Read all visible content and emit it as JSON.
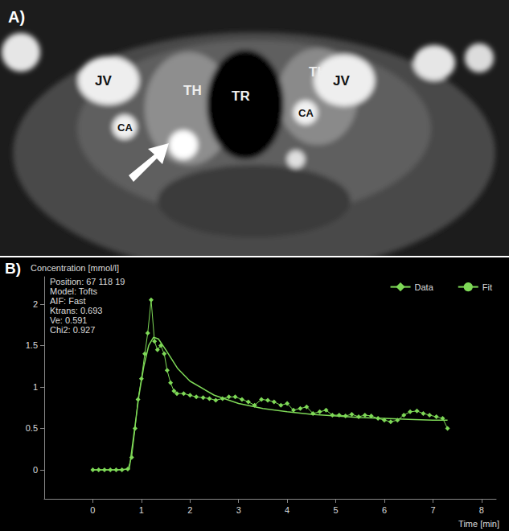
{
  "panel_a": {
    "letter": "A)",
    "labels": [
      "JV",
      "TH",
      "TR",
      "TH",
      "JV",
      "CA",
      "CA"
    ]
  },
  "chart_data": {
    "type": "line",
    "letter": "B)",
    "y_label": "Concentration [mmol/l]",
    "x_label": "Time [min]",
    "annotations": [
      "Position: 67 118 19",
      "Model: Tofts",
      "AIF: Fast",
      "Ktrans: 0.693",
      "Ve: 0.591",
      "Chi2: 0.927"
    ],
    "xlim": [
      -1,
      8.3
    ],
    "xticks": [
      0,
      1,
      2,
      3,
      4,
      5,
      6,
      7,
      8
    ],
    "ylim": [
      -0.35,
      2.33
    ],
    "yticks": [
      0,
      0.5,
      1,
      1.5,
      2
    ],
    "grid": false,
    "legend": "upper right",
    "series": [
      {
        "name": "Data",
        "color": "#7ed957",
        "marker": "diamond",
        "line_style": "solid",
        "x": [
          0,
          0.12,
          0.24,
          0.36,
          0.48,
          0.6,
          0.72,
          0.8,
          0.87,
          0.93,
          1.0,
          1.07,
          1.13,
          1.2,
          1.27,
          1.33,
          1.4,
          1.47,
          1.53,
          1.6,
          1.67,
          1.73,
          1.87,
          2.0,
          2.13,
          2.27,
          2.4,
          2.53,
          2.67,
          2.8,
          2.93,
          3.07,
          3.2,
          3.33,
          3.47,
          3.6,
          3.73,
          3.87,
          4.0,
          4.13,
          4.27,
          4.4,
          4.53,
          4.67,
          4.8,
          4.93,
          5.07,
          5.2,
          5.33,
          5.47,
          5.6,
          5.73,
          5.87,
          6.0,
          6.13,
          6.27,
          6.4,
          6.53,
          6.67,
          6.8,
          6.93,
          7.07,
          7.2,
          7.3
        ],
        "values": [
          0,
          0,
          0,
          0,
          0,
          0,
          0.01,
          0.15,
          0.5,
          0.85,
          1.1,
          1.4,
          1.65,
          2.05,
          1.55,
          1.45,
          1.5,
          1.4,
          1.2,
          1.05,
          0.95,
          0.92,
          0.92,
          0.9,
          0.88,
          0.87,
          0.86,
          0.84,
          0.86,
          0.88,
          0.88,
          0.85,
          0.82,
          0.78,
          0.85,
          0.84,
          0.82,
          0.78,
          0.8,
          0.72,
          0.74,
          0.76,
          0.68,
          0.7,
          0.72,
          0.66,
          0.66,
          0.65,
          0.67,
          0.64,
          0.66,
          0.65,
          0.62,
          0.6,
          0.58,
          0.6,
          0.66,
          0.7,
          0.71,
          0.68,
          0.66,
          0.64,
          0.62,
          0.5
        ]
      },
      {
        "name": "Fit",
        "color": "#7ed957",
        "marker": "none",
        "line_style": "solid",
        "x": [
          0,
          0.5,
          0.75,
          0.85,
          0.95,
          1.05,
          1.15,
          1.25,
          1.35,
          1.5,
          1.75,
          2.0,
          2.5,
          3.0,
          3.5,
          4.0,
          4.5,
          5.0,
          5.5,
          6.0,
          6.5,
          7.0,
          7.3
        ],
        "values": [
          0,
          0,
          0.01,
          0.45,
          0.9,
          1.25,
          1.5,
          1.6,
          1.58,
          1.45,
          1.22,
          1.07,
          0.9,
          0.8,
          0.74,
          0.7,
          0.67,
          0.65,
          0.63,
          0.62,
          0.61,
          0.6,
          0.6
        ]
      }
    ]
  }
}
